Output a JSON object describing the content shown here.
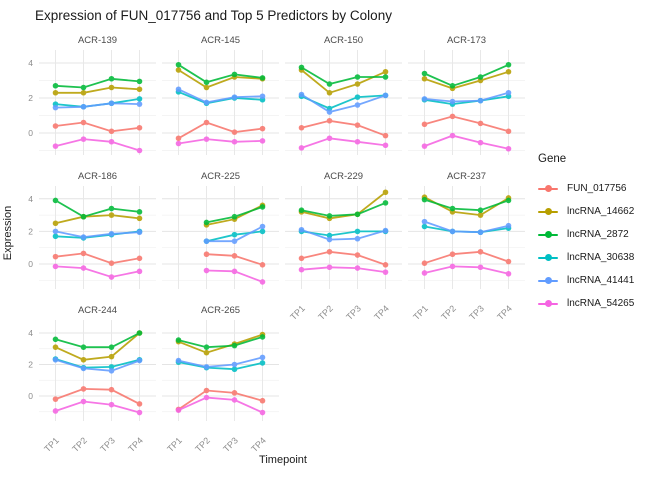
{
  "title": "Expression of FUN_017756 and Top 5 Predictors by Colony",
  "axes": {
    "x_title": "Timepoint",
    "y_title": "Expression",
    "x_ticks": [
      "TP1",
      "TP2",
      "TP3",
      "TP4"
    ],
    "y_ticks": [
      "4",
      "2",
      "0"
    ],
    "y_tick_values": [
      4,
      2,
      0
    ]
  },
  "legend": {
    "title": "Gene",
    "items": [
      {
        "label": "FUN_017756",
        "color": "#F8766D"
      },
      {
        "label": "lncRNA_14662",
        "color": "#B79F00"
      },
      {
        "label": "lncRNA_2872",
        "color": "#00BA38"
      },
      {
        "label": "lncRNA_30638",
        "color": "#00BFC4"
      },
      {
        "label": "lncRNA_41441",
        "color": "#619CFF"
      },
      {
        "label": "lncRNA_54265",
        "color": "#F564E2"
      }
    ]
  },
  "chart_data": {
    "type": "line",
    "x": [
      "TP1",
      "TP2",
      "TP3",
      "TP4"
    ],
    "ylim": [
      -1.5,
      4.8
    ],
    "grid": "on",
    "legend_position": "right",
    "facets": [
      {
        "name": "ACR-139",
        "series": {
          "FUN_017756": [
            0.4,
            0.6,
            0.1,
            0.3
          ],
          "lncRNA_14662": [
            2.3,
            2.3,
            2.6,
            2.5
          ],
          "lncRNA_2872": [
            2.7,
            2.6,
            3.1,
            2.95
          ],
          "lncRNA_30638": [
            1.65,
            1.5,
            1.7,
            1.95
          ],
          "lncRNA_41441": [
            1.45,
            1.5,
            1.7,
            1.65
          ],
          "lncRNA_54265": [
            -0.75,
            -0.35,
            -0.5,
            -1.0
          ]
        }
      },
      {
        "name": "ACR-145",
        "series": {
          "FUN_017756": [
            -0.3,
            0.6,
            0.05,
            0.25
          ],
          "lncRNA_14662": [
            3.6,
            2.6,
            3.2,
            3.1
          ],
          "lncRNA_2872": [
            3.9,
            2.9,
            3.35,
            3.15
          ],
          "lncRNA_30638": [
            2.35,
            1.7,
            2.0,
            1.9
          ],
          "lncRNA_41441": [
            2.5,
            1.75,
            2.05,
            2.1
          ],
          "lncRNA_54265": [
            -0.6,
            -0.35,
            -0.5,
            -0.45
          ]
        }
      },
      {
        "name": "ACR-150",
        "series": {
          "FUN_017756": [
            0.3,
            0.7,
            0.45,
            -0.15
          ],
          "lncRNA_14662": [
            3.6,
            2.3,
            2.8,
            3.5
          ],
          "lncRNA_2872": [
            3.75,
            2.8,
            3.2,
            3.2
          ],
          "lncRNA_30638": [
            2.1,
            1.4,
            2.05,
            2.15
          ],
          "lncRNA_41441": [
            2.2,
            1.2,
            1.6,
            2.15
          ],
          "lncRNA_54265": [
            -0.85,
            -0.3,
            -0.5,
            -0.7
          ]
        }
      },
      {
        "name": "ACR-173",
        "series": {
          "FUN_017756": [
            0.5,
            0.95,
            0.55,
            0.1
          ],
          "lncRNA_14662": [
            3.1,
            2.55,
            3.0,
            3.5
          ],
          "lncRNA_2872": [
            3.4,
            2.7,
            3.2,
            3.9
          ],
          "lncRNA_30638": [
            1.9,
            1.65,
            1.85,
            2.1
          ],
          "lncRNA_41441": [
            1.95,
            1.8,
            1.85,
            2.3
          ],
          "lncRNA_54265": [
            -0.75,
            -0.15,
            -0.55,
            -0.9
          ]
        }
      },
      {
        "name": "ACR-186",
        "series": {
          "FUN_017756": [
            0.45,
            0.65,
            0.05,
            0.35
          ],
          "lncRNA_14662": [
            2.5,
            2.9,
            3.0,
            2.8
          ],
          "lncRNA_2872": [
            3.9,
            2.9,
            3.4,
            3.2
          ],
          "lncRNA_30638": [
            1.7,
            1.6,
            1.8,
            2.0
          ],
          "lncRNA_41441": [
            2.0,
            1.65,
            1.85,
            1.95
          ],
          "lncRNA_54265": [
            -0.15,
            -0.25,
            -0.8,
            -0.45
          ]
        }
      },
      {
        "name": "ACR-225",
        "series": {
          "FUN_017756": [
            null,
            0.6,
            0.5,
            -0.05
          ],
          "lncRNA_14662": [
            null,
            2.4,
            2.75,
            3.6
          ],
          "lncRNA_2872": [
            null,
            2.55,
            2.9,
            3.5
          ],
          "lncRNA_30638": [
            null,
            1.4,
            1.8,
            2.0
          ],
          "lncRNA_41441": [
            null,
            1.4,
            1.4,
            2.3
          ],
          "lncRNA_54265": [
            null,
            -0.4,
            -0.45,
            -1.1
          ]
        }
      },
      {
        "name": "ACR-229",
        "series": {
          "FUN_017756": [
            0.35,
            0.75,
            0.55,
            -0.05
          ],
          "lncRNA_14662": [
            3.2,
            2.8,
            3.05,
            4.4
          ],
          "lncRNA_2872": [
            3.3,
            2.95,
            3.05,
            3.75
          ],
          "lncRNA_30638": [
            2.0,
            1.75,
            2.0,
            2.0
          ],
          "lncRNA_41441": [
            2.1,
            1.5,
            1.55,
            2.05
          ],
          "lncRNA_54265": [
            -0.35,
            -0.2,
            -0.25,
            -0.5
          ]
        }
      },
      {
        "name": "ACR-237",
        "series": {
          "FUN_017756": [
            0.05,
            0.6,
            0.75,
            0.15
          ],
          "lncRNA_14662": [
            4.1,
            3.2,
            3.0,
            4.05
          ],
          "lncRNA_2872": [
            3.95,
            3.4,
            3.3,
            3.9
          ],
          "lncRNA_30638": [
            2.3,
            2.0,
            1.95,
            2.2
          ],
          "lncRNA_41441": [
            2.6,
            2.0,
            1.95,
            2.35
          ],
          "lncRNA_54265": [
            -0.55,
            -0.15,
            -0.2,
            -0.6
          ]
        }
      },
      {
        "name": "ACR-244",
        "series": {
          "FUN_017756": [
            -0.2,
            0.45,
            0.4,
            -0.5
          ],
          "lncRNA_14662": [
            3.1,
            2.3,
            2.5,
            4.0
          ],
          "lncRNA_2872": [
            3.6,
            3.1,
            3.1,
            4.0
          ],
          "lncRNA_30638": [
            2.35,
            1.8,
            1.85,
            2.3
          ],
          "lncRNA_41441": [
            2.3,
            1.75,
            1.6,
            2.25
          ],
          "lncRNA_54265": [
            -0.95,
            -0.35,
            -0.55,
            -1.05
          ]
        }
      },
      {
        "name": "ACR-265",
        "series": {
          "FUN_017756": [
            -0.85,
            0.35,
            0.2,
            -0.3
          ],
          "lncRNA_14662": [
            3.45,
            2.75,
            3.3,
            3.9
          ],
          "lncRNA_2872": [
            3.55,
            3.1,
            3.2,
            3.75
          ],
          "lncRNA_30638": [
            2.15,
            1.8,
            1.7,
            2.1
          ],
          "lncRNA_41441": [
            2.25,
            1.85,
            2.0,
            2.45
          ],
          "lncRNA_54265": [
            -0.9,
            -0.1,
            -0.25,
            -1.05
          ]
        }
      }
    ]
  }
}
